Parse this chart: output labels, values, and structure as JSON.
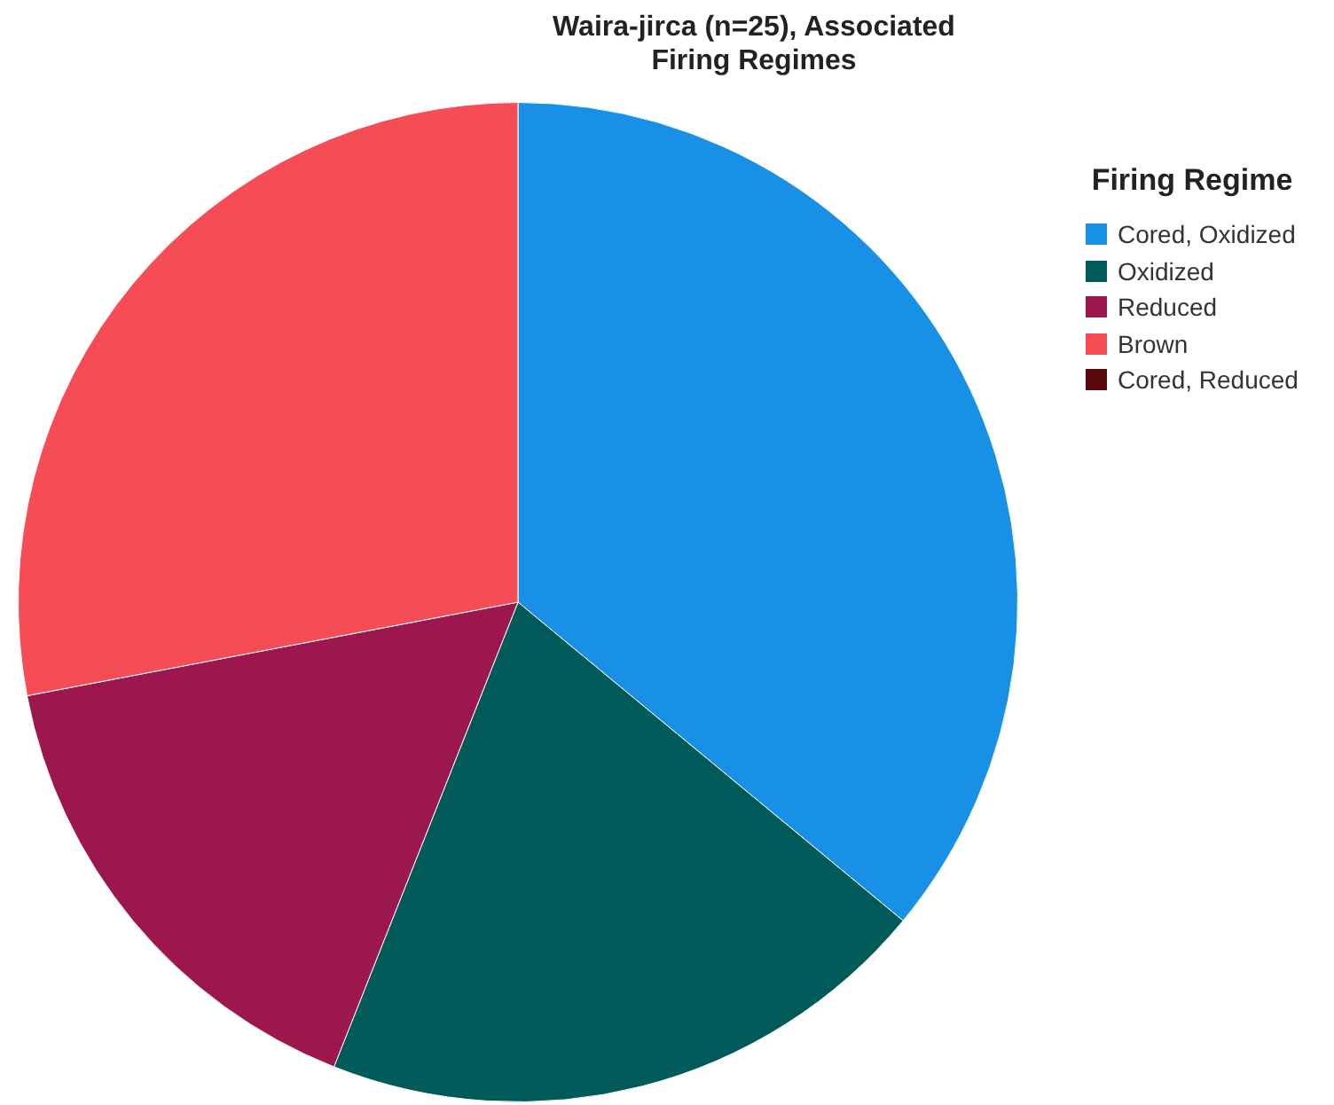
{
  "chart_data": {
    "type": "pie",
    "title": "Waira-jirca (n=25), Associated Firing Regimes",
    "legend_title": "Firing Regime",
    "legend": "right",
    "categories": [
      "Cored, Oxidized",
      "Oxidized",
      "Reduced",
      "Brown",
      "Cored, Reduced"
    ],
    "values": [
      36,
      20,
      16,
      28,
      0
    ],
    "colors": [
      "#1890e6",
      "#015a5a",
      "#9b174e",
      "#f64c56",
      "#5a0a0a"
    ]
  }
}
